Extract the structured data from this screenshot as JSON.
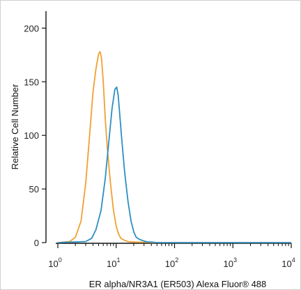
{
  "chart_data": {
    "type": "line",
    "title": "",
    "xlabel": "ER alpha/NR3A1 (ER503) Alexa Fluor® 488",
    "ylabel": "Relative Cell Number",
    "x_scale": "log",
    "xlim": [
      1,
      10000
    ],
    "ylim": [
      0,
      210
    ],
    "x_ticks": [
      {
        "base": "10",
        "exp": "0"
      },
      {
        "base": "10",
        "exp": "1"
      },
      {
        "base": "10",
        "exp": "2"
      },
      {
        "base": "10",
        "exp": "3"
      },
      {
        "base": "10",
        "exp": "4"
      }
    ],
    "x_tick_values": [
      1,
      10,
      100,
      1000,
      10000
    ],
    "y_ticks": [
      "0",
      "50",
      "100",
      "150",
      "200"
    ],
    "y_tick_values": [
      0,
      50,
      100,
      150,
      200
    ],
    "grid": false,
    "legend": "none",
    "series": [
      {
        "color": "#f0a030",
        "x": [
          1,
          1.6,
          2.0,
          2.5,
          3.0,
          3.5,
          4.0,
          4.5,
          5.0,
          5.3,
          5.6,
          6.0,
          6.5,
          7.0,
          8.0,
          9.0,
          10,
          11,
          12,
          14,
          16,
          20,
          25,
          30,
          40,
          100,
          1000,
          10000
        ],
        "y": [
          0,
          1,
          5,
          20,
          55,
          100,
          140,
          162,
          176,
          178,
          172,
          150,
          115,
          90,
          55,
          30,
          15,
          8,
          4,
          2,
          1,
          0.5,
          0.3,
          0.3,
          0,
          0,
          0,
          0
        ]
      },
      {
        "color": "#2b8fc4",
        "x": [
          1,
          3.0,
          3.8,
          4.5,
          5.5,
          6.5,
          7.5,
          8.5,
          9.5,
          10.2,
          10.8,
          11.5,
          12.5,
          14,
          16,
          18,
          20,
          22,
          25,
          30,
          35,
          40,
          50,
          100,
          1000,
          10000
        ],
        "y": [
          0,
          1,
          4,
          12,
          30,
          60,
          95,
          125,
          143,
          145,
          138,
          120,
          95,
          65,
          38,
          20,
          10,
          5,
          3,
          1.5,
          0.5,
          0.5,
          0,
          0,
          0,
          0
        ]
      }
    ]
  }
}
